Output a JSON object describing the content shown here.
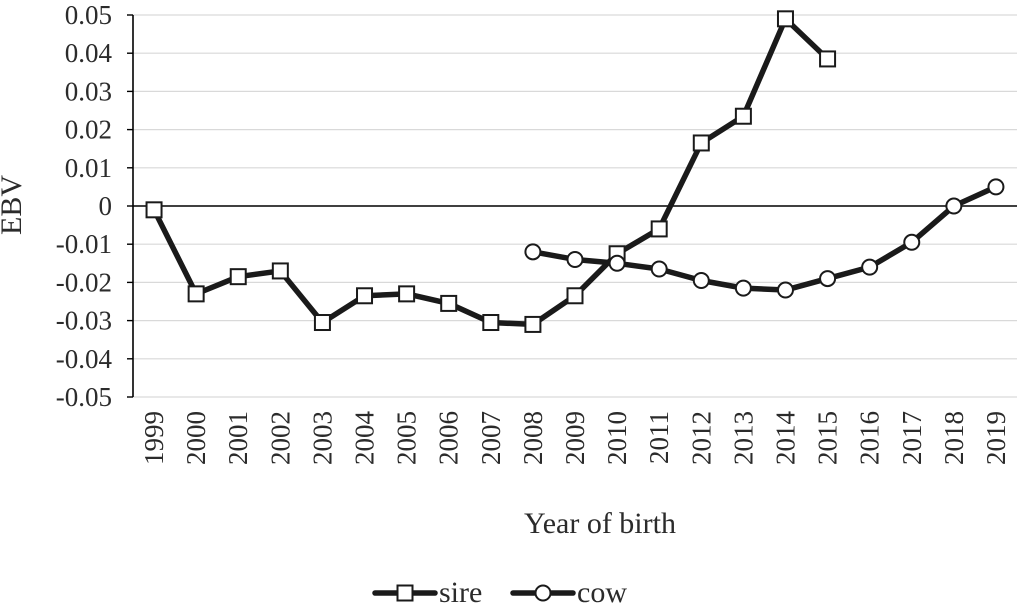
{
  "chart_data": {
    "type": "line",
    "xlabel": "Year of birth",
    "ylabel": "EBV",
    "ylim": [
      -0.05,
      0.05
    ],
    "y_ticks": [
      "0.05",
      "0.04",
      "0.03",
      "0.02",
      "0.01",
      "0",
      "-0.01",
      "-0.02",
      "-0.03",
      "-0.04",
      "-0.05"
    ],
    "y_tick_values": [
      0.05,
      0.04,
      0.03,
      0.02,
      0.01,
      0,
      -0.01,
      -0.02,
      -0.03,
      -0.04,
      -0.05
    ],
    "categories": [
      "1999",
      "2000",
      "2001",
      "2002",
      "2003",
      "2004",
      "2005",
      "2006",
      "2007",
      "2008",
      "2009",
      "2010",
      "2011",
      "2012",
      "2013",
      "2014",
      "2015",
      "2016",
      "2017",
      "2018",
      "2019"
    ],
    "grid": true,
    "legend_position": "bottom",
    "series": [
      {
        "name": "sire",
        "marker": "square",
        "values": [
          -0.001,
          -0.023,
          -0.0185,
          -0.017,
          -0.0305,
          -0.0235,
          -0.023,
          -0.0255,
          -0.0305,
          -0.031,
          -0.0235,
          -0.0125,
          -0.006,
          0.0165,
          0.0235,
          0.049,
          0.0385,
          null,
          null,
          null,
          null
        ]
      },
      {
        "name": "cow",
        "marker": "circle",
        "values": [
          null,
          null,
          null,
          null,
          null,
          null,
          null,
          null,
          null,
          -0.012,
          -0.014,
          -0.015,
          -0.0165,
          -0.0195,
          -0.0215,
          -0.022,
          -0.019,
          -0.016,
          -0.0095,
          0.0,
          0.005
        ]
      }
    ]
  }
}
